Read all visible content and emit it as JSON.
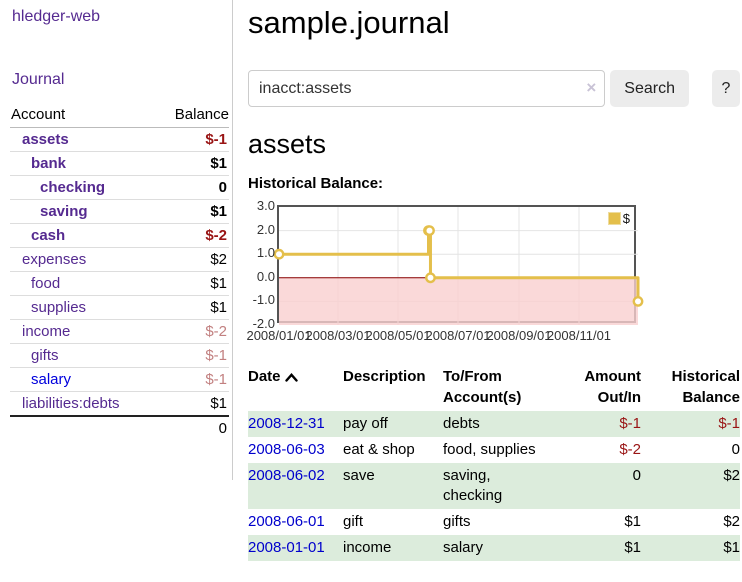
{
  "app": {
    "title": "hledger-web"
  },
  "sidebar": {
    "nav_journal": "Journal",
    "accounts_table": {
      "headers": {
        "account": "Account",
        "balance": "Balance"
      },
      "rows": [
        {
          "name": "assets",
          "indent": 1,
          "bold": true,
          "balance": "$-1",
          "negative": true
        },
        {
          "name": "bank",
          "indent": 2,
          "bold": true,
          "balance": "$1"
        },
        {
          "name": "checking",
          "indent": 3,
          "bold": true,
          "balance": "0"
        },
        {
          "name": "saving",
          "indent": 3,
          "bold": true,
          "balance": "$1"
        },
        {
          "name": "cash",
          "indent": 2,
          "bold": true,
          "balance": "$-2",
          "negative": true
        },
        {
          "name": "expenses",
          "indent": 1,
          "bold": false,
          "balance": "$2"
        },
        {
          "name": "food",
          "indent": 2,
          "bold": false,
          "balance": "$1"
        },
        {
          "name": "supplies",
          "indent": 2,
          "bold": false,
          "balance": "$1"
        },
        {
          "name": "income",
          "indent": 1,
          "bold": false,
          "balance": "$-2",
          "negative": true,
          "dim": true
        },
        {
          "name": "gifts",
          "indent": 2,
          "bold": false,
          "balance": "$-1",
          "negative": true,
          "dim": true
        },
        {
          "name": "salary",
          "indent": 2,
          "bold": false,
          "balance": "$-1",
          "negative": true,
          "dim": true,
          "blue_link": true
        },
        {
          "name": "liabilities:debts",
          "indent": 1,
          "bold": false,
          "balance": "$1"
        }
      ],
      "total": "0"
    }
  },
  "header": {
    "title": "sample.journal"
  },
  "search": {
    "value": "inacct:assets",
    "clear_icon": "×",
    "button_label": "Search",
    "help_label": "?"
  },
  "account_page": {
    "heading": "assets",
    "chart_title": "Historical Balance:"
  },
  "chart_data": {
    "type": "line",
    "style": "step",
    "title": "Historical Balance",
    "series": [
      {
        "name": "$",
        "color": "#e4bf4b",
        "points": [
          [
            "2008-01-01",
            1
          ],
          [
            "2008-06-01",
            2
          ],
          [
            "2008-06-02",
            2
          ],
          [
            "2008-06-03",
            0
          ],
          [
            "2008-12-31",
            -1
          ]
        ]
      }
    ],
    "x_range": [
      "2008-01-01",
      "2008-12-31"
    ],
    "ylim": [
      -2,
      3
    ],
    "y_ticks": [
      "3.0",
      "2.0",
      "1.0",
      "0.0",
      "-1.0",
      "-2.0"
    ],
    "x_ticks": [
      "2008/01/01",
      "2008/03/01",
      "2008/05/01",
      "2008/07/01",
      "2008/09/01",
      "2008/11/01"
    ],
    "grid": true,
    "legend": [
      {
        "label": "$",
        "color": "#e4bf4b"
      }
    ],
    "legend_position": "top-right",
    "negative_region_fill": "#f9cfcf",
    "zero_line_color": "#8b0000"
  },
  "table": {
    "headers": [
      "Date",
      "Description",
      "To/From\nAccount(s)",
      "Amount\nOut/In",
      "Historical\nBalance"
    ],
    "sort_column": "Date",
    "sort_direction": "ascending",
    "rows": [
      {
        "date": "2008-12-31",
        "description": "pay off",
        "accounts": "debts",
        "amount": "$-1",
        "amount_negative": true,
        "balance": "$-1",
        "balance_negative": true
      },
      {
        "date": "2008-06-03",
        "description": "eat & shop",
        "accounts": "food, supplies",
        "amount": "$-2",
        "amount_negative": true,
        "balance": "0"
      },
      {
        "date": "2008-06-02",
        "description": "save",
        "accounts": "saving,\nchecking",
        "amount": "0",
        "balance": "$2"
      },
      {
        "date": "2008-06-01",
        "description": "gift",
        "accounts": "gifts",
        "amount": "$1",
        "balance": "$2"
      },
      {
        "date": "2008-01-01",
        "description": "income",
        "accounts": "salary",
        "amount": "$1",
        "balance": "$1"
      }
    ]
  },
  "colors": {
    "link_purple": "#552a90",
    "link_blue": "#0000dd",
    "date_link_blue": "#0000cc",
    "negative_red": "#991414",
    "negative_dim_red": "#c28080",
    "row_stripe_green": "#dcecdc",
    "chart_line_gold": "#e4bf4b",
    "chart_negative_fill": "#f9cfcf",
    "chart_zero_line": "#8b0000"
  }
}
